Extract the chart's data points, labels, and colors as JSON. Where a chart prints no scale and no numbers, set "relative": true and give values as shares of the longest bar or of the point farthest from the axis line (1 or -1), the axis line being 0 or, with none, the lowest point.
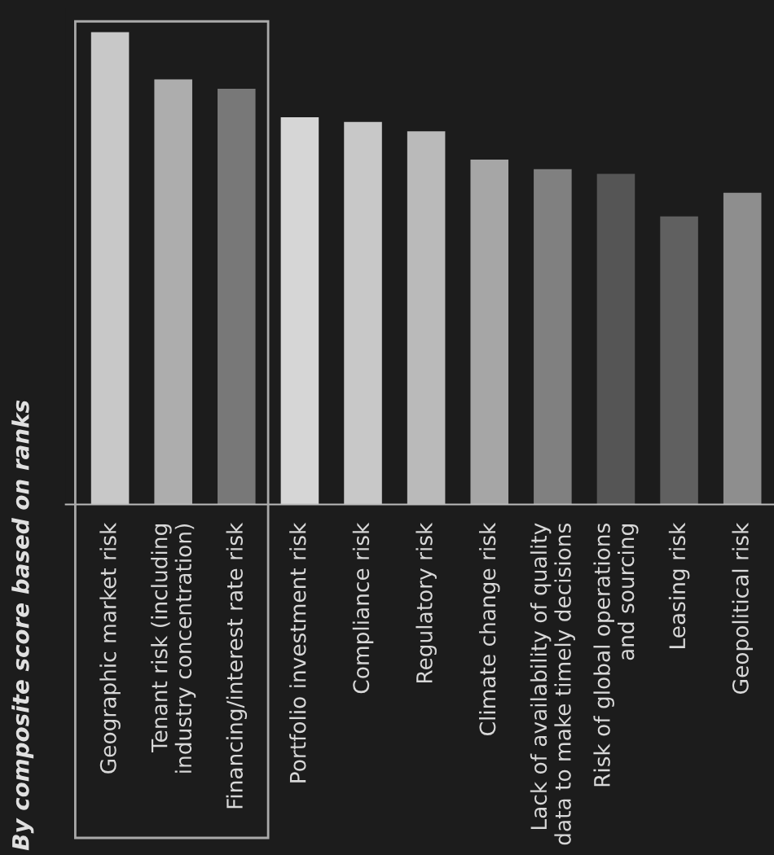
{
  "chart_data": {
    "type": "bar",
    "title": "By composite score based on ranks",
    "relative": true,
    "categories": [
      "Geographic market risk",
      "Tenant risk (including\nindustry concentration)",
      "Financing/interest rate risk",
      "Portfolio investment risk",
      "Compliance risk",
      "Regulatory risk",
      "Climate change risk",
      "Lack of availability of quality\ndata to make timely decisions",
      "Risk of global operations\nand sourcing",
      "Leasing risk",
      "Geopolitical risk"
    ],
    "values": [
      1,
      0.9,
      0.88,
      0.82,
      0.81,
      0.79,
      0.73,
      0.71,
      0.7,
      0.61,
      0.66
    ],
    "colors": [
      "#c8c8c8",
      "#adadad",
      "#787878",
      "#d6d6d6",
      "#c8c8c8",
      "#bababa",
      "#a6a6a6",
      "#808080",
      "#555555",
      "#606060",
      "#8e8e8e"
    ],
    "grid": false,
    "legend": false
  }
}
